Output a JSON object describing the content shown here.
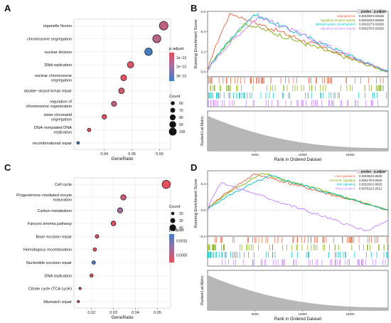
{
  "chart_data": [
    {
      "panel": "A",
      "type": "scatter",
      "categories": [
        "organelle fission",
        "chromosome segregation",
        "nuclear division",
        "DNA replication",
        "nuclear chromosome segregation",
        "double−strand break repair",
        "regulation of chromosome organization",
        "sister chromatid segregation",
        "DNA−templated DNA replication",
        "recombinational repair"
      ],
      "x": [
        0.0615,
        0.059,
        0.056,
        0.0495,
        0.047,
        0.0462,
        0.0435,
        0.04,
        0.0345,
        0.0305
      ],
      "counts": [
        110,
        104,
        98,
        86,
        80,
        78,
        72,
        66,
        55,
        47
      ],
      "p_adjust": [
        8e-14,
        9e-14,
        4.8e-13,
        5e-14,
        1.5e-14,
        6e-14,
        7e-14,
        5e-14,
        4e-14,
        4.5e-13
      ],
      "xlim": [
        0.029,
        0.064
      ],
      "xticks": [
        "0.04",
        "0.05",
        "0.06"
      ],
      "xlabel": "GeneRatio",
      "color_legend": {
        "title": "p.adjust",
        "labels": [
          "1e−13",
          "2e−13",
          "3e−13"
        ]
      },
      "size_legend": {
        "title": "Count",
        "labels": [
          "60",
          "70",
          "80",
          "90",
          "100"
        ]
      }
    },
    {
      "panel": "B",
      "type": "line",
      "ylabel": "Running Enrichment Score",
      "xlabel": "Rank in Ordered Dataset",
      "ylabel_bottom": "Ranked List Metric",
      "ylim": [
        -0.05,
        0.6
      ],
      "yticks": [
        "0.0",
        "0.2",
        "0.4",
        "0.6"
      ],
      "xticks": [
        "5000",
        "10000",
        "15000"
      ],
      "table_header": [
        "pvalue",
        "p.adjust"
      ],
      "series": [
        {
          "name": "angiogenesis",
          "color": "#e8603c",
          "pvalue": "0.001050",
          "p_adjust": "0.02628",
          "peak_rank": 2400,
          "peak": 0.58
        },
        {
          "name": "signaling receptor activity",
          "color": "#7cae00",
          "pvalue": "0.001015",
          "p_adjust": "0.02628",
          "peak_rank": 4000,
          "peak": 0.48
        },
        {
          "name": "skeletal system development",
          "color": "#00bfc4",
          "pvalue": "0.001027",
          "p_adjust": "0.02628",
          "peak_rank": 4900,
          "peak": 0.57
        },
        {
          "name": "signaling receptor activity",
          "color": "#c77cff",
          "pvalue": "0.001070",
          "p_adjust": "0.02628",
          "peak_rank": 5400,
          "peak": 0.55
        }
      ]
    },
    {
      "panel": "C",
      "type": "scatter",
      "categories": [
        "Cell cycle",
        "Progesterone−mediated oocyte maturation",
        "Carbon metabolism",
        "Fanconi anemia pathway",
        "Base excision repair",
        "Homologous recombination",
        "Nucleotide excision repair",
        "DNA replication",
        "Citrate cycle (TCA cycle)",
        "Mismatch repair"
      ],
      "x": [
        0.054,
        0.0345,
        0.033,
        0.03,
        0.0225,
        0.0215,
        0.021,
        0.02,
        0.0148,
        0.014
      ],
      "counts": [
        50,
        33,
        32,
        29,
        22,
        21,
        21,
        20,
        15,
        14
      ],
      "p_adjust": [
        0.0003,
        0.0004,
        0.0006,
        0.0003,
        0.0003,
        0.0003,
        0.0013,
        0.0003,
        0.0003,
        0.0003
      ],
      "xlim": [
        0.012,
        0.056
      ],
      "xticks": [
        "0.02",
        "0.03",
        "0.04",
        "0.05"
      ],
      "xlabel": "GeneRatio",
      "color_legend": {
        "title": "p.adjust",
        "labels": [
          "0.0010",
          "0.0005"
        ]
      },
      "size_legend": {
        "title": "Count",
        "labels": [
          "20",
          "30",
          "40"
        ]
      }
    },
    {
      "panel": "D",
      "type": "line",
      "ylabel": "Running Enrichment Score",
      "xlabel": "Rank in Ordered Dataset",
      "ylabel_bottom": "Ranked List Metric",
      "ylim": [
        -0.4,
        0.6
      ],
      "yticks": [
        "−0.4",
        "0.0",
        "0.4"
      ],
      "xticks": [
        "5000",
        "10000",
        "15000"
      ],
      "table_header": [
        "pvalue",
        "p.adjust"
      ],
      "series": [
        {
          "name": "Axon guidance",
          "color": "#e8603c",
          "pvalue": "0.001063",
          "p_adjust": "0.0625",
          "peak_rank": 5000,
          "peak": 0.55
        },
        {
          "name": "Hormone signaling",
          "color": "#7cae00",
          "pvalue": "0.001179",
          "p_adjust": "0.0625",
          "peak_rank": 5800,
          "peak": 0.56
        },
        {
          "name": "Wnt signaling",
          "color": "#00bfc4",
          "pvalue": "0.001100",
          "p_adjust": "0.0625",
          "peak_rank": 6600,
          "peak": 0.52
        },
        {
          "name": "Motor proteins",
          "color": "#c77cff",
          "pvalue": "0.007612",
          "p_adjust": "0.2512",
          "peak_rank": 1400,
          "peak": 0.42
        }
      ]
    }
  ]
}
